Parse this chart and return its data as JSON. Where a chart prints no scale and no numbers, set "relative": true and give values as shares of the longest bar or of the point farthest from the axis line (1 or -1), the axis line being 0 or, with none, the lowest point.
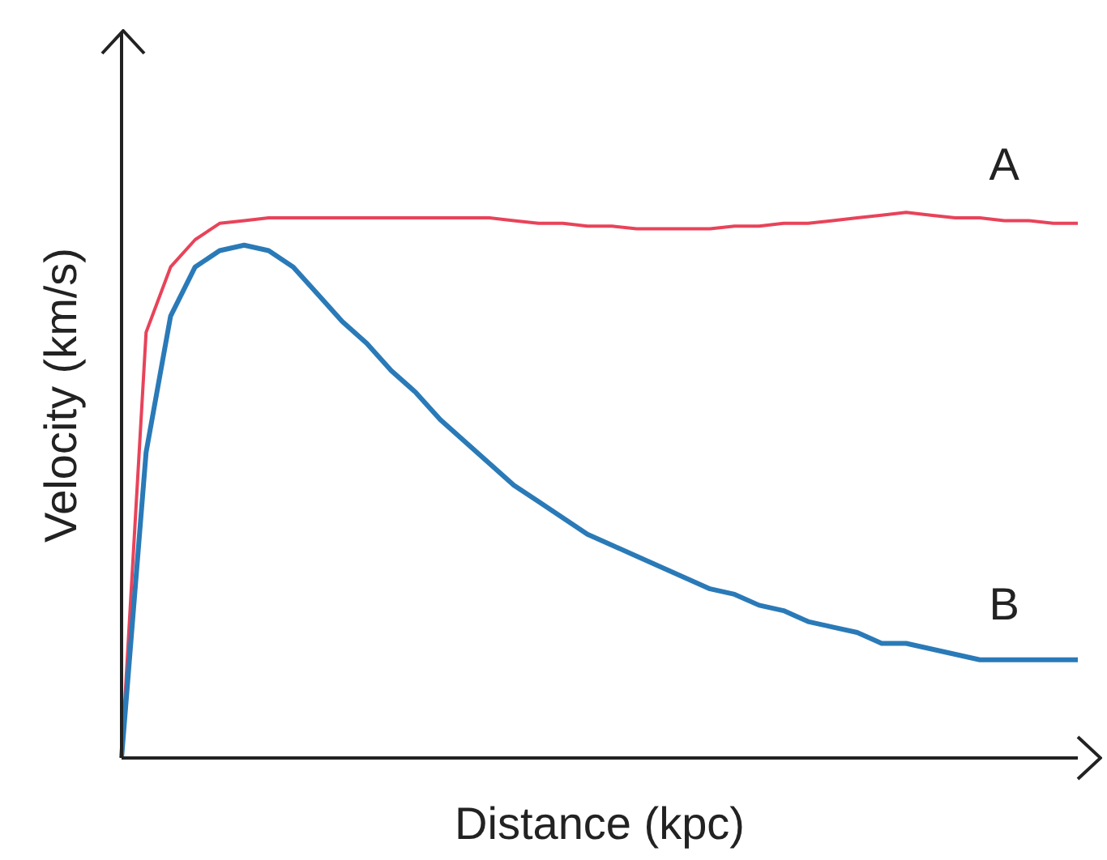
{
  "chart_data": {
    "type": "line",
    "relative": true,
    "xlabel": "Distance (kpc)",
    "ylabel": "Velocity (km/s)",
    "marker": "none",
    "categories": [
      null,
      null,
      null,
      null,
      null,
      null,
      null,
      null,
      null,
      null,
      null,
      null,
      null,
      null,
      null,
      null,
      null,
      null,
      null,
      null,
      null,
      null,
      null,
      null,
      null,
      null,
      null,
      null,
      null,
      null,
      null,
      null,
      null,
      null,
      null,
      null,
      null,
      null,
      null,
      null
    ],
    "series": [
      {
        "name": "A",
        "color": "#e8435a",
        "values": [
          0,
          0.78,
          0.9,
          0.95,
          0.98,
          0.985,
          0.99,
          0.99,
          0.99,
          0.99,
          0.99,
          0.99,
          0.99,
          0.99,
          0.99,
          0.99,
          0.985,
          0.98,
          0.98,
          0.975,
          0.975,
          0.97,
          0.97,
          0.97,
          0.97,
          0.975,
          0.975,
          0.98,
          0.98,
          0.985,
          0.99,
          0.995,
          1.0,
          0.995,
          0.99,
          0.99,
          0.985,
          0.985,
          0.98,
          0.98
        ]
      },
      {
        "name": "B",
        "color": "#2a7ab8",
        "values": [
          0,
          0.56,
          0.81,
          0.9,
          0.93,
          0.94,
          0.93,
          0.9,
          0.85,
          0.8,
          0.76,
          0.71,
          0.67,
          0.62,
          0.58,
          0.54,
          0.5,
          0.47,
          0.44,
          0.41,
          0.39,
          0.37,
          0.35,
          0.33,
          0.31,
          0.3,
          0.28,
          0.27,
          0.25,
          0.24,
          0.23,
          0.21,
          0.21,
          0.2,
          0.19,
          0.18,
          0.18,
          0.18,
          0.18,
          0.18
        ]
      }
    ]
  }
}
